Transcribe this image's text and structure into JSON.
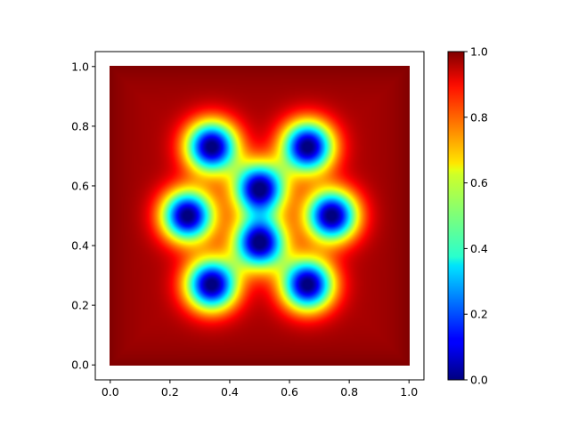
{
  "chart_data": {
    "type": "heatmap",
    "colormap": "jet",
    "xlim": [
      -0.05,
      1.05
    ],
    "ylim": [
      -0.05,
      1.05
    ],
    "data_extent": {
      "x": [
        0.0,
        1.0
      ],
      "y": [
        0.0,
        1.0
      ]
    },
    "x_ticks": [
      0.0,
      0.2,
      0.4,
      0.6,
      0.8,
      1.0
    ],
    "y_ticks": [
      0.0,
      0.2,
      0.4,
      0.6,
      0.8,
      1.0
    ],
    "x_tick_labels": [
      "0.0",
      "0.2",
      "0.4",
      "0.6",
      "0.8",
      "1.0"
    ],
    "y_tick_labels": [
      "0.0",
      "0.2",
      "0.4",
      "0.6",
      "0.8",
      "1.0"
    ],
    "colorbar": {
      "range": [
        0.0,
        1.0
      ],
      "ticks": [
        0.0,
        0.2,
        0.4,
        0.6,
        0.8,
        1.0
      ],
      "tick_labels": [
        "0.0",
        "0.2",
        "0.4",
        "0.6",
        "0.8",
        "1.0"
      ]
    },
    "minima": [
      {
        "x": 0.34,
        "y": 0.73,
        "value": 0.0
      },
      {
        "x": 0.66,
        "y": 0.73,
        "value": 0.0
      },
      {
        "x": 0.5,
        "y": 0.59,
        "value": 0.0
      },
      {
        "x": 0.26,
        "y": 0.5,
        "value": 0.0
      },
      {
        "x": 0.74,
        "y": 0.5,
        "value": 0.0
      },
      {
        "x": 0.5,
        "y": 0.41,
        "value": 0.0
      },
      {
        "x": 0.34,
        "y": 0.27,
        "value": 0.0
      },
      {
        "x": 0.66,
        "y": 0.27,
        "value": 0.0
      }
    ],
    "background_value": 1.0,
    "title": "",
    "xlabel": "",
    "ylabel": "",
    "grid": false
  }
}
